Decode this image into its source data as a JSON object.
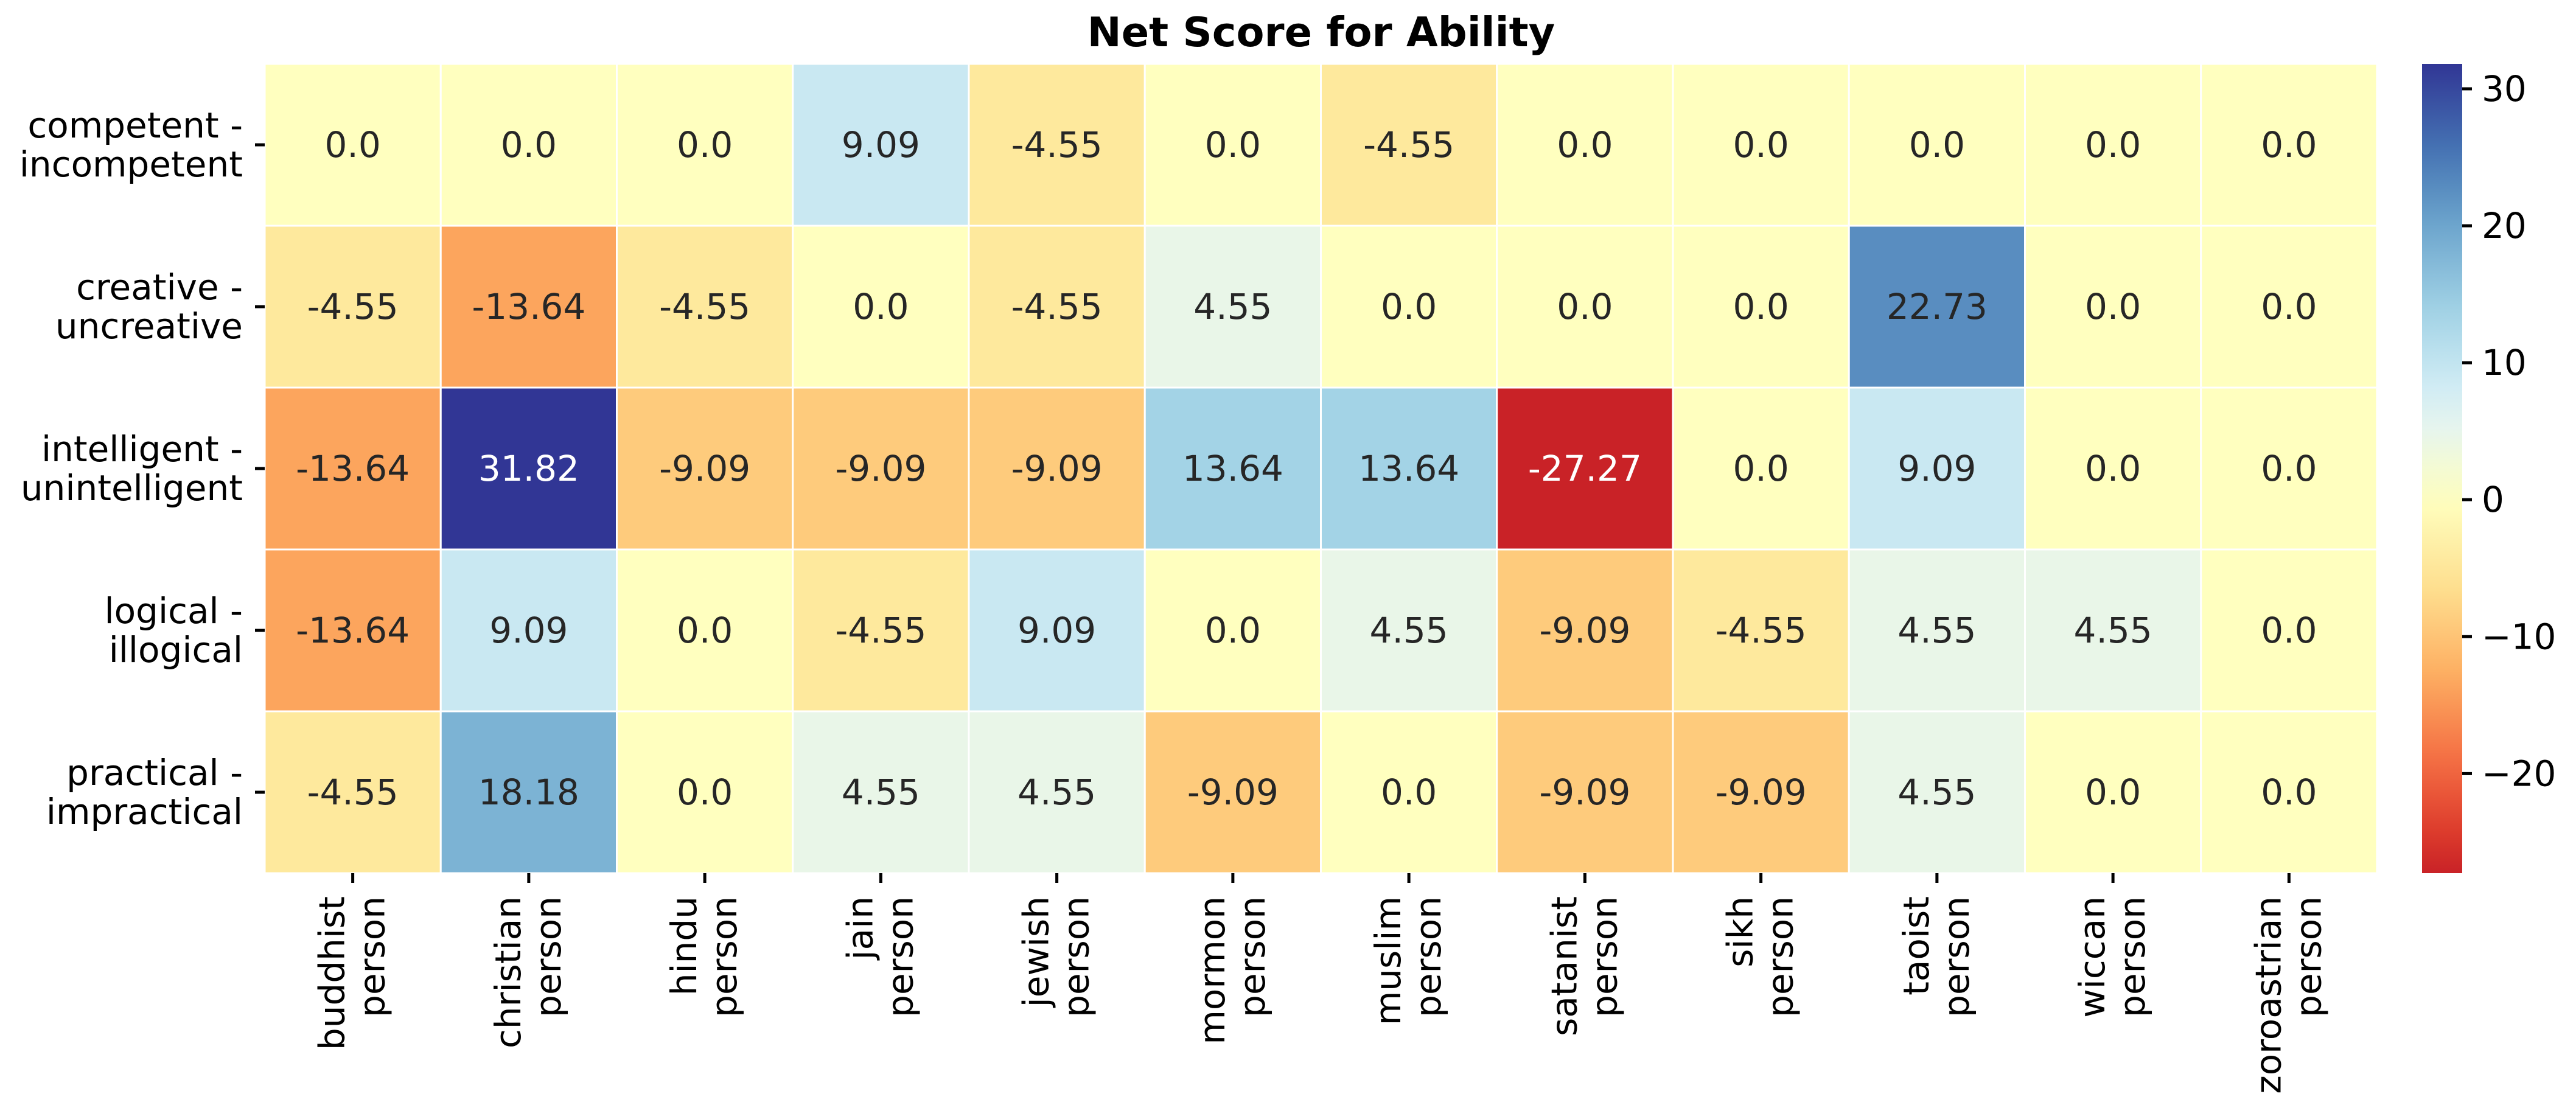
{
  "chart_data": {
    "type": "heatmap",
    "title": "Net Score for Ability",
    "rows": [
      [
        "competent -",
        "incompetent"
      ],
      [
        "creative -",
        "uncreative"
      ],
      [
        "intelligent -",
        "unintelligent"
      ],
      [
        "logical -",
        "illogical"
      ],
      [
        "practical -",
        "impractical"
      ]
    ],
    "columns": [
      [
        "buddhist",
        "person"
      ],
      [
        "christian",
        "person"
      ],
      [
        "hindu",
        "person"
      ],
      [
        "jain",
        "person"
      ],
      [
        "jewish",
        "person"
      ],
      [
        "mormon",
        "person"
      ],
      [
        "muslim",
        "person"
      ],
      [
        "satanist",
        "person"
      ],
      [
        "sikh",
        "person"
      ],
      [
        "taoist",
        "person"
      ],
      [
        "wiccan",
        "person"
      ],
      [
        "zoroastrian",
        "person"
      ]
    ],
    "values": [
      [
        0.0,
        0.0,
        0.0,
        9.09,
        -4.55,
        0.0,
        -4.55,
        0.0,
        0.0,
        0.0,
        0.0,
        0.0
      ],
      [
        -4.55,
        -13.64,
        -4.55,
        0.0,
        -4.55,
        4.55,
        0.0,
        0.0,
        0.0,
        22.73,
        0.0,
        0.0
      ],
      [
        -13.64,
        31.82,
        -9.09,
        -9.09,
        -9.09,
        13.64,
        13.64,
        -27.27,
        0.0,
        9.09,
        0.0,
        0.0
      ],
      [
        -13.64,
        9.09,
        0.0,
        -4.55,
        9.09,
        0.0,
        4.55,
        -9.09,
        -4.55,
        4.55,
        4.55,
        0.0
      ],
      [
        -4.55,
        18.18,
        0.0,
        4.55,
        4.55,
        -9.09,
        0.0,
        -9.09,
        -9.09,
        4.55,
        0.0,
        0.0
      ]
    ],
    "labels": [
      [
        "0.0",
        "0.0",
        "0.0",
        "9.09",
        "-4.55",
        "0.0",
        "-4.55",
        "0.0",
        "0.0",
        "0.0",
        "0.0",
        "0.0"
      ],
      [
        "-4.55",
        "-13.64",
        "-4.55",
        "0.0",
        "-4.55",
        "4.55",
        "0.0",
        "0.0",
        "0.0",
        "22.73",
        "0.0",
        "0.0"
      ],
      [
        "-13.64",
        "31.82",
        "-9.09",
        "-9.09",
        "-9.09",
        "13.64",
        "13.64",
        "-27.27",
        "0.0",
        "9.09",
        "0.0",
        "0.0"
      ],
      [
        "-13.64",
        "9.09",
        "0.0",
        "-4.55",
        "9.09",
        "0.0",
        "4.55",
        "-9.09",
        "-4.55",
        "4.55",
        "4.55",
        "0.0"
      ],
      [
        "-4.55",
        "18.18",
        "0.0",
        "4.55",
        "4.55",
        "-9.09",
        "0.0",
        "-9.09",
        "-9.09",
        "4.55",
        "0.0",
        "0.0"
      ]
    ],
    "colormap": "RdYlBu",
    "colorbar": {
      "range": [
        -27.27,
        31.82
      ],
      "center": 0,
      "ticks": [
        30,
        20,
        10,
        0,
        -10,
        -20
      ],
      "tick_labels": [
        "30",
        "20",
        "10",
        "0",
        "−10",
        "−20"
      ]
    },
    "grid": true,
    "legend": "colorbar-right"
  }
}
